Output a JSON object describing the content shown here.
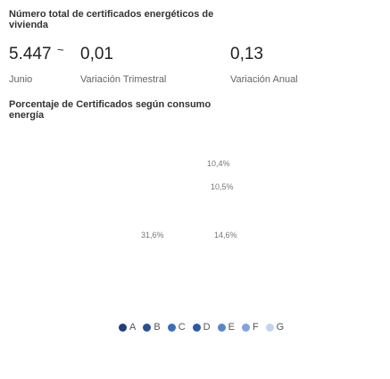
{
  "kpi": {
    "title": "Número total de certificados energéticos de vivienda",
    "value": "5.447",
    "trend": "~",
    "period": "Junio",
    "quarterly_value": "0,01",
    "quarterly_label": "Variación Trimestral",
    "annual_value": "0,13",
    "annual_label": "Variación Anual"
  },
  "chart": {
    "title": "Porcentaje de Certificados según consumo energía",
    "slice_labels": [
      "10,4%",
      "10,5%",
      "31,6%",
      "14,6%"
    ],
    "legend": [
      {
        "name": "A",
        "color": "#1f3f7a"
      },
      {
        "name": "B",
        "color": "#2a4f94"
      },
      {
        "name": "C",
        "color": "#3d6db5"
      },
      {
        "name": "D",
        "color": "#2d5aa6"
      },
      {
        "name": "E",
        "color": "#5b86c8"
      },
      {
        "name": "F",
        "color": "#7fa3da"
      },
      {
        "name": "G",
        "color": "#c3d4ee"
      }
    ]
  }
}
